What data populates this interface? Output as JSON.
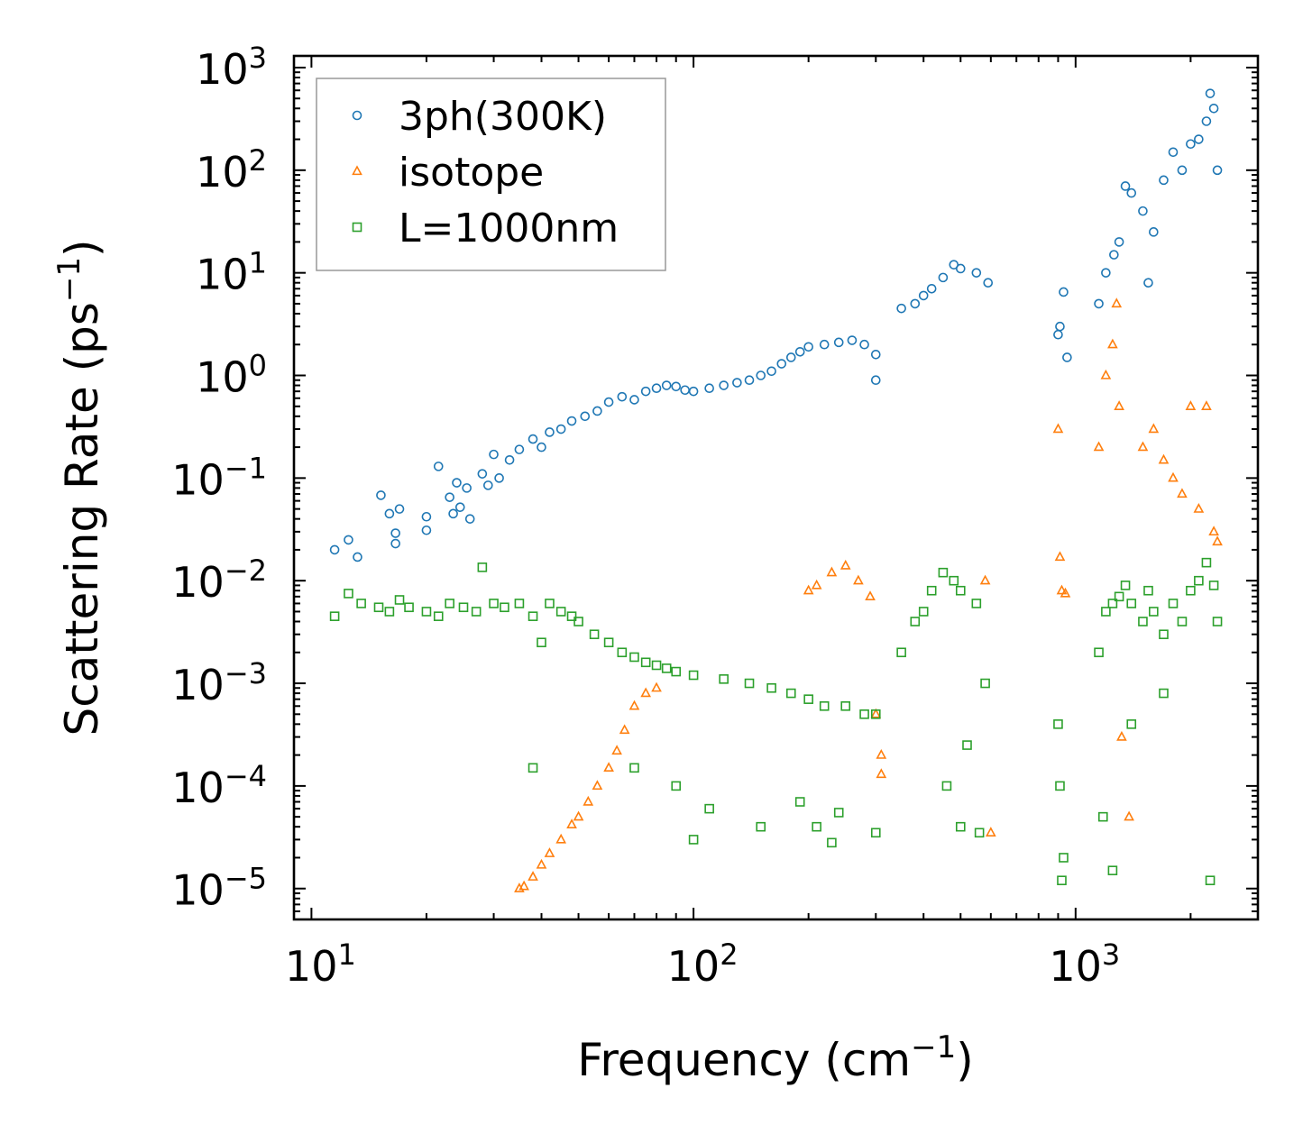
{
  "chart_data": {
    "type": "scatter",
    "xscale": "log",
    "yscale": "log",
    "xlabel_main": "Frequency (cm",
    "xlabel_exp": "−1",
    "xlabel_close": ")",
    "ylabel_main": "Scattering Rate (ps",
    "ylabel_exp": "−1",
    "ylabel_close": ")",
    "xlim": [
      9,
      3000
    ],
    "ylim": [
      5e-06,
      1300
    ],
    "x_ticks": [
      {
        "value": 10,
        "base": "10",
        "exp": "1"
      },
      {
        "value": 100,
        "base": "10",
        "exp": "2"
      },
      {
        "value": 1000,
        "base": "10",
        "exp": "3"
      }
    ],
    "y_ticks": [
      {
        "value": 1e-05,
        "base": "10",
        "exp": "−5"
      },
      {
        "value": 0.0001,
        "base": "10",
        "exp": "−4"
      },
      {
        "value": 0.001,
        "base": "10",
        "exp": "−3"
      },
      {
        "value": 0.01,
        "base": "10",
        "exp": "−2"
      },
      {
        "value": 0.1,
        "base": "10",
        "exp": "−1"
      },
      {
        "value": 1,
        "base": "10",
        "exp": "0"
      },
      {
        "value": 10,
        "base": "10",
        "exp": "1"
      },
      {
        "value": 100,
        "base": "10",
        "exp": "2"
      },
      {
        "value": 1000,
        "base": "10",
        "exp": "3"
      }
    ],
    "legend_position": "top-left",
    "series": [
      {
        "name": "3ph(300K)",
        "marker": "circle",
        "color": "#1f77b4",
        "points": [
          [
            11.5,
            0.02
          ],
          [
            12.5,
            0.025
          ],
          [
            13.2,
            0.017
          ],
          [
            15.2,
            0.068
          ],
          [
            16,
            0.045
          ],
          [
            16.6,
            0.029
          ],
          [
            16.6,
            0.023
          ],
          [
            17,
            0.05
          ],
          [
            20,
            0.042
          ],
          [
            20,
            0.031
          ],
          [
            21.5,
            0.13
          ],
          [
            23,
            0.065
          ],
          [
            23.5,
            0.045
          ],
          [
            24,
            0.09
          ],
          [
            24.5,
            0.052
          ],
          [
            25.5,
            0.08
          ],
          [
            26,
            0.04
          ],
          [
            28,
            0.11
          ],
          [
            29,
            0.085
          ],
          [
            30,
            0.17
          ],
          [
            31,
            0.1
          ],
          [
            33,
            0.15
          ],
          [
            35,
            0.19
          ],
          [
            38,
            0.24
          ],
          [
            40,
            0.2
          ],
          [
            42,
            0.28
          ],
          [
            45,
            0.3
          ],
          [
            48,
            0.36
          ],
          [
            52,
            0.4
          ],
          [
            56,
            0.45
          ],
          [
            60,
            0.55
          ],
          [
            65,
            0.62
          ],
          [
            70,
            0.58
          ],
          [
            75,
            0.7
          ],
          [
            80,
            0.75
          ],
          [
            85,
            0.8
          ],
          [
            90,
            0.78
          ],
          [
            95,
            0.72
          ],
          [
            100,
            0.7
          ],
          [
            110,
            0.75
          ],
          [
            120,
            0.8
          ],
          [
            130,
            0.85
          ],
          [
            140,
            0.9
          ],
          [
            150,
            1.0
          ],
          [
            160,
            1.1
          ],
          [
            170,
            1.3
          ],
          [
            180,
            1.5
          ],
          [
            190,
            1.7
          ],
          [
            200,
            1.9
          ],
          [
            220,
            2.0
          ],
          [
            240,
            2.1
          ],
          [
            260,
            2.2
          ],
          [
            280,
            2.0
          ],
          [
            300,
            1.6
          ],
          [
            300,
            0.9
          ],
          [
            350,
            4.5
          ],
          [
            380,
            5.0
          ],
          [
            400,
            6.0
          ],
          [
            420,
            7.0
          ],
          [
            450,
            9.0
          ],
          [
            480,
            12.0
          ],
          [
            500,
            11.0
          ],
          [
            550,
            10.0
          ],
          [
            590,
            8.0
          ],
          [
            900,
            2.5
          ],
          [
            910,
            3.0
          ],
          [
            930,
            6.5
          ],
          [
            950,
            1.5
          ],
          [
            1150,
            5.0
          ],
          [
            1200,
            10.0
          ],
          [
            1260,
            15.0
          ],
          [
            1300,
            20.0
          ],
          [
            1350,
            70.0
          ],
          [
            1400,
            60.0
          ],
          [
            1500,
            40.0
          ],
          [
            1550,
            8.0
          ],
          [
            1600,
            25.0
          ],
          [
            1700,
            80.0
          ],
          [
            1800,
            150.0
          ],
          [
            1900,
            100.0
          ],
          [
            2000,
            180.0
          ],
          [
            2100,
            200.0
          ],
          [
            2200,
            300.0
          ],
          [
            2250,
            560.0
          ],
          [
            2300,
            400.0
          ],
          [
            2350,
            100.0
          ]
        ]
      },
      {
        "name": "isotope",
        "marker": "triangle",
        "color": "#ff7f0e",
        "points": [
          [
            35,
            1e-05
          ],
          [
            36,
            1.05e-05
          ],
          [
            38,
            1.3e-05
          ],
          [
            40,
            1.7e-05
          ],
          [
            42,
            2.2e-05
          ],
          [
            45,
            3e-05
          ],
          [
            48,
            4.2e-05
          ],
          [
            50,
            5e-05
          ],
          [
            53,
            7e-05
          ],
          [
            56,
            0.0001
          ],
          [
            60,
            0.00015
          ],
          [
            63,
            0.00022
          ],
          [
            66,
            0.00035
          ],
          [
            70,
            0.0006
          ],
          [
            75,
            0.0008
          ],
          [
            80,
            0.0009
          ],
          [
            200,
            0.008
          ],
          [
            210,
            0.009
          ],
          [
            230,
            0.012
          ],
          [
            250,
            0.014
          ],
          [
            270,
            0.01
          ],
          [
            290,
            0.007
          ],
          [
            300,
            0.0005
          ],
          [
            310,
            0.0002
          ],
          [
            310,
            0.00013
          ],
          [
            580,
            0.01
          ],
          [
            600,
            3.5e-05
          ],
          [
            900,
            0.3
          ],
          [
            910,
            0.017
          ],
          [
            920,
            0.008
          ],
          [
            940,
            0.0075
          ],
          [
            1150,
            0.2
          ],
          [
            1200,
            1.0
          ],
          [
            1250,
            2.0
          ],
          [
            1280,
            5.0
          ],
          [
            1300,
            0.5
          ],
          [
            1320,
            0.0003
          ],
          [
            1380,
            5e-05
          ],
          [
            1500,
            0.2
          ],
          [
            1600,
            0.3
          ],
          [
            1700,
            0.15
          ],
          [
            1800,
            0.1
          ],
          [
            1900,
            0.07
          ],
          [
            2000,
            0.5
          ],
          [
            2100,
            0.05
          ],
          [
            2200,
            0.5
          ],
          [
            2300,
            0.03
          ],
          [
            2350,
            0.024
          ]
        ]
      },
      {
        "name": "L=1000nm",
        "marker": "square",
        "color": "#2ca02c",
        "points": [
          [
            11.5,
            0.0045
          ],
          [
            12.5,
            0.0075
          ],
          [
            13.5,
            0.006
          ],
          [
            15,
            0.0055
          ],
          [
            16,
            0.005
          ],
          [
            17,
            0.0065
          ],
          [
            18,
            0.0055
          ],
          [
            20,
            0.005
          ],
          [
            21.5,
            0.0045
          ],
          [
            23,
            0.006
          ],
          [
            25,
            0.0055
          ],
          [
            27,
            0.005
          ],
          [
            28,
            0.0135
          ],
          [
            30,
            0.006
          ],
          [
            32,
            0.0055
          ],
          [
            35,
            0.006
          ],
          [
            38,
            0.0045
          ],
          [
            40,
            0.0025
          ],
          [
            42,
            0.006
          ],
          [
            45,
            0.005
          ],
          [
            48,
            0.0045
          ],
          [
            50,
            0.004
          ],
          [
            55,
            0.003
          ],
          [
            60,
            0.0025
          ],
          [
            65,
            0.002
          ],
          [
            70,
            0.0018
          ],
          [
            75,
            0.0016
          ],
          [
            80,
            0.0015
          ],
          [
            85,
            0.0014
          ],
          [
            90,
            0.0013
          ],
          [
            100,
            0.0012
          ],
          [
            120,
            0.0011
          ],
          [
            140,
            0.001
          ],
          [
            160,
            0.0009
          ],
          [
            180,
            0.0008
          ],
          [
            200,
            0.0007
          ],
          [
            220,
            0.0006
          ],
          [
            250,
            0.0006
          ],
          [
            280,
            0.0005
          ],
          [
            300,
            0.0005
          ],
          [
            38,
            0.00015
          ],
          [
            70,
            0.00015
          ],
          [
            90,
            0.0001
          ],
          [
            100,
            3e-05
          ],
          [
            110,
            6e-05
          ],
          [
            150,
            4e-05
          ],
          [
            190,
            7e-05
          ],
          [
            210,
            4e-05
          ],
          [
            230,
            2.8e-05
          ],
          [
            240,
            5.5e-05
          ],
          [
            300,
            3.5e-05
          ],
          [
            350,
            0.002
          ],
          [
            380,
            0.004
          ],
          [
            400,
            0.005
          ],
          [
            420,
            0.008
          ],
          [
            450,
            0.012
          ],
          [
            480,
            0.01
          ],
          [
            500,
            0.008
          ],
          [
            550,
            0.006
          ],
          [
            580,
            0.001
          ],
          [
            460,
            0.0001
          ],
          [
            500,
            4e-05
          ],
          [
            520,
            0.00025
          ],
          [
            560,
            3.5e-05
          ],
          [
            900,
            0.0004
          ],
          [
            910,
            0.0001
          ],
          [
            920,
            1.2e-05
          ],
          [
            930,
            2e-05
          ],
          [
            1150,
            0.002
          ],
          [
            1200,
            0.005
          ],
          [
            1250,
            0.006
          ],
          [
            1300,
            0.007
          ],
          [
            1350,
            0.009
          ],
          [
            1400,
            0.006
          ],
          [
            1500,
            0.004
          ],
          [
            1550,
            0.008
          ],
          [
            1600,
            0.005
          ],
          [
            1700,
            0.003
          ],
          [
            1800,
            0.006
          ],
          [
            1900,
            0.004
          ],
          [
            2000,
            0.008
          ],
          [
            2100,
            0.01
          ],
          [
            2200,
            0.015
          ],
          [
            2300,
            0.009
          ],
          [
            2350,
            0.004
          ],
          [
            2250,
            1.2e-05
          ],
          [
            1250,
            1.5e-05
          ],
          [
            1180,
            5e-05
          ],
          [
            1400,
            0.0004
          ],
          [
            1700,
            0.0008
          ]
        ]
      }
    ]
  }
}
